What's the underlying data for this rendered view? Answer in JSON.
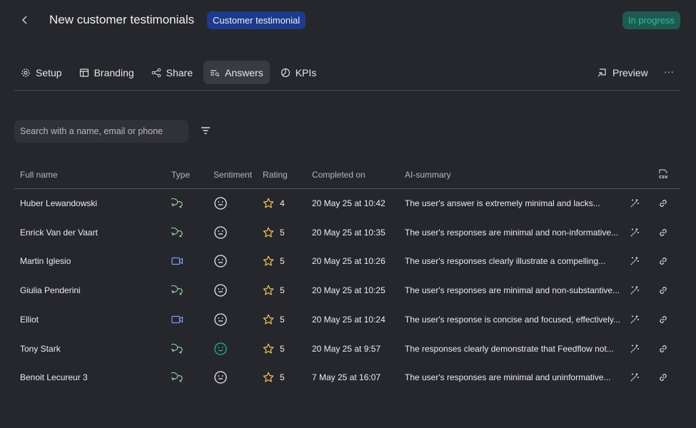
{
  "header": {
    "title": "New customer testimonials",
    "type_badge": "Customer testimonial",
    "status": "In progress"
  },
  "tabs": [
    {
      "label": "Setup",
      "icon": "gear-icon"
    },
    {
      "label": "Branding",
      "icon": "layout-icon"
    },
    {
      "label": "Share",
      "icon": "share-icon"
    },
    {
      "label": "Answers",
      "icon": "answers-icon",
      "active": true
    },
    {
      "label": "KPIs",
      "icon": "pie-chart-icon"
    }
  ],
  "actions": {
    "preview": "Preview",
    "more": "···"
  },
  "search": {
    "placeholder": "Search with a name, email or phone",
    "value": ""
  },
  "table": {
    "columns": [
      "Full name",
      "Type",
      "Sentiment",
      "Rating",
      "Completed on",
      "AI-summary"
    ],
    "export_icon": "csv-icon",
    "rows": [
      {
        "name": "Huber Lewandowski",
        "type": "text",
        "sentiment": "neutral",
        "rating": "4",
        "completed": "20 May 25 at 10:42",
        "summary": "The user's answer is extremely minimal and lacks..."
      },
      {
        "name": "Enrick Van der Vaart",
        "type": "text",
        "sentiment": "neutral",
        "rating": "5",
        "completed": "20 May 25 at 10:35",
        "summary": "The user's responses are minimal and non-informative..."
      },
      {
        "name": "Martin Iglesio",
        "type": "video",
        "sentiment": "neutral",
        "rating": "5",
        "completed": "20 May 25 at 10:26",
        "summary": "The user's responses clearly illustrate a compelling..."
      },
      {
        "name": "Giulia Penderini",
        "type": "text",
        "sentiment": "neutral",
        "rating": "5",
        "completed": "20 May 25 at 10:25",
        "summary": "The user's responses are minimal and non-substantive..."
      },
      {
        "name": "Elliot",
        "type": "video",
        "sentiment": "neutral",
        "rating": "5",
        "completed": "20 May 25 at 10:24",
        "summary": "The user's response is concise and focused, effectively..."
      },
      {
        "name": "Tony Stark",
        "type": "text",
        "sentiment": "positive",
        "rating": "5",
        "completed": "20 May 25 at 9:57",
        "summary": "The responses clearly demonstrate that Feedflow not..."
      },
      {
        "name": "Benoit Lecureur 3",
        "type": "text",
        "sentiment": "neutral",
        "rating": "5",
        "completed": "7 May 25 at 16:07",
        "summary": "The user's responses are minimal and uninformative..."
      }
    ]
  },
  "colors": {
    "background": "#26272c",
    "badge": "#1e3a8a",
    "status_bg": "#1f5a52",
    "status_text": "#2bbfa0",
    "star": "#f2c55c",
    "text_type": "#9fd4a8",
    "video_type": "#7c9cf0",
    "positive": "#14b8a6"
  }
}
